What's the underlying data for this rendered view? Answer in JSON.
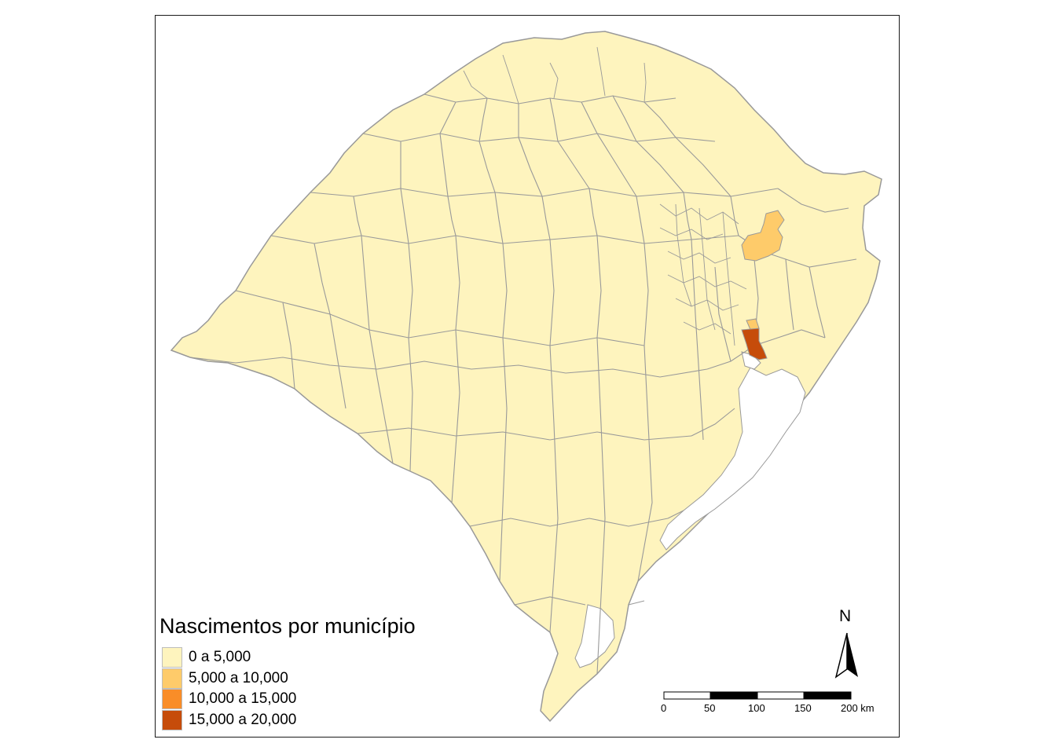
{
  "legend": {
    "title": "Nascimentos por município",
    "items": [
      {
        "label": "0 a 5,000",
        "color": "#fef4be"
      },
      {
        "label": "5,000 a 10,000",
        "color": "#fecb6a"
      },
      {
        "label": "10,000 a 15,000",
        "color": "#f98d28"
      },
      {
        "label": "15,000 a 20,000",
        "color": "#c64c0a"
      }
    ]
  },
  "north_arrow": {
    "label": "N"
  },
  "scale_bar": {
    "ticks": [
      "0",
      "50",
      "100",
      "150",
      "200 km"
    ],
    "unit": "km"
  },
  "colors": {
    "land": "#fef4be",
    "border": "#999999",
    "water": "#ffffff",
    "highlight_mid": "#fecb6a",
    "highlight_high": "#c64c0a"
  }
}
